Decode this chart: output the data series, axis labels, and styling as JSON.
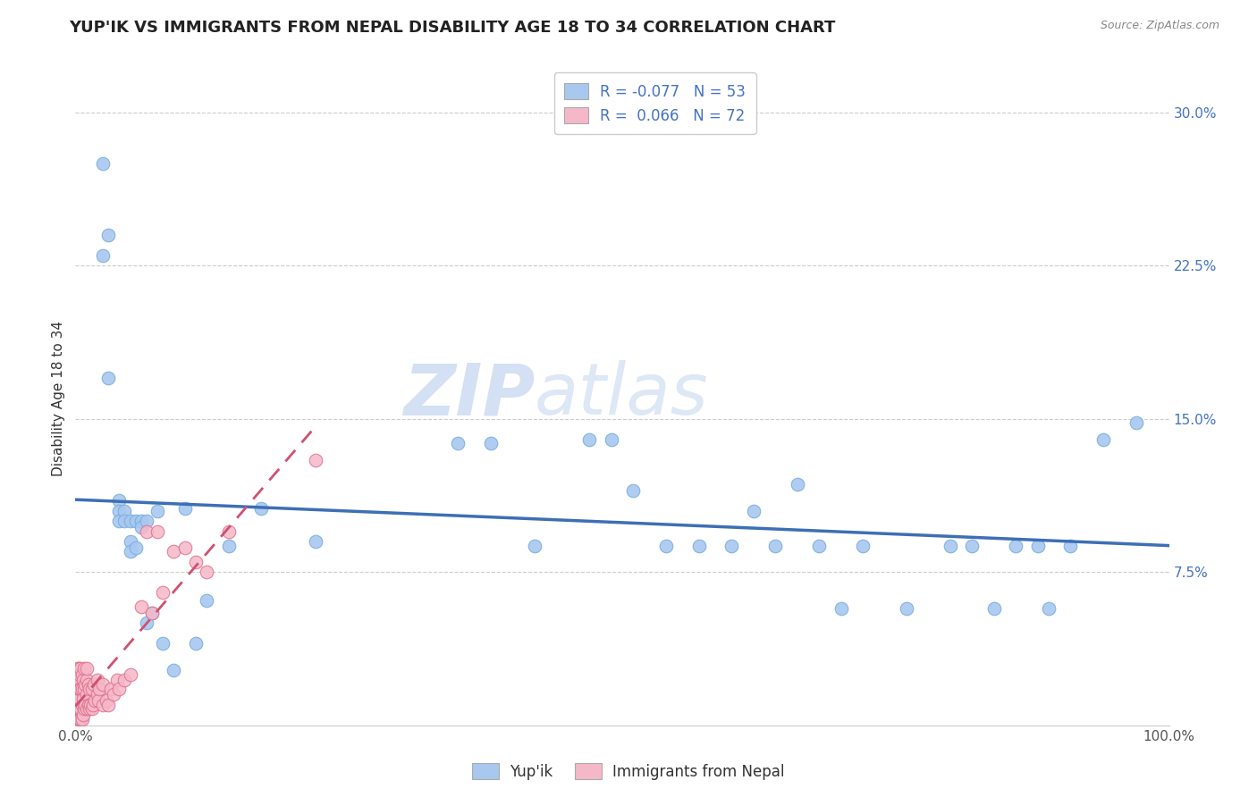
{
  "title": "YUP'IK VS IMMIGRANTS FROM NEPAL DISABILITY AGE 18 TO 34 CORRELATION CHART",
  "source": "Source: ZipAtlas.com",
  "ylabel": "Disability Age 18 to 34",
  "xlim": [
    0,
    1.0
  ],
  "ylim": [
    0,
    0.32
  ],
  "xtick_positions": [
    0,
    1.0
  ],
  "xtick_labels": [
    "0.0%",
    "100.0%"
  ],
  "ytick_values": [
    0.075,
    0.15,
    0.225,
    0.3
  ],
  "ytick_labels": [
    "7.5%",
    "15.0%",
    "22.5%",
    "30.0%"
  ],
  "grid_color": "#cccccc",
  "background_color": "#ffffff",
  "series1_label": "Yup'ik",
  "series1_color": "#a8c8f0",
  "series1_edge_color": "#7aaedd",
  "series1_line_color": "#3d6fb5",
  "series1_R": "-0.077",
  "series1_N": "53",
  "series2_label": "Immigrants from Nepal",
  "series2_color": "#f5b8c8",
  "series2_edge_color": "#e07090",
  "series2_line_color": "#d05070",
  "series2_R": "0.066",
  "series2_N": "72",
  "watermark_zip": "ZIP",
  "watermark_atlas": "atlas",
  "watermark_color_zip": "#b8c8e8",
  "watermark_color_atlas": "#c0d0e8",
  "series1_x": [
    0.025,
    0.025,
    0.03,
    0.03,
    0.04,
    0.04,
    0.04,
    0.045,
    0.045,
    0.05,
    0.05,
    0.05,
    0.055,
    0.055,
    0.06,
    0.06,
    0.065,
    0.065,
    0.07,
    0.075,
    0.08,
    0.09,
    0.1,
    0.11,
    0.12,
    0.14,
    0.17,
    0.22,
    0.35,
    0.38,
    0.42,
    0.47,
    0.49,
    0.51,
    0.54,
    0.57,
    0.6,
    0.62,
    0.64,
    0.66,
    0.68,
    0.7,
    0.72,
    0.76,
    0.8,
    0.82,
    0.84,
    0.86,
    0.88,
    0.89,
    0.91,
    0.94,
    0.97
  ],
  "series1_y": [
    0.275,
    0.23,
    0.24,
    0.17,
    0.11,
    0.105,
    0.1,
    0.105,
    0.1,
    0.1,
    0.09,
    0.085,
    0.1,
    0.087,
    0.1,
    0.097,
    0.1,
    0.05,
    0.055,
    0.105,
    0.04,
    0.027,
    0.106,
    0.04,
    0.061,
    0.088,
    0.106,
    0.09,
    0.138,
    0.138,
    0.088,
    0.14,
    0.14,
    0.115,
    0.088,
    0.088,
    0.088,
    0.105,
    0.088,
    0.118,
    0.088,
    0.057,
    0.088,
    0.057,
    0.088,
    0.088,
    0.057,
    0.088,
    0.088,
    0.057,
    0.088,
    0.14,
    0.148
  ],
  "series2_x": [
    0.002,
    0.002,
    0.002,
    0.002,
    0.002,
    0.002,
    0.003,
    0.003,
    0.003,
    0.003,
    0.003,
    0.003,
    0.004,
    0.004,
    0.004,
    0.004,
    0.004,
    0.005,
    0.005,
    0.005,
    0.005,
    0.006,
    0.006,
    0.006,
    0.006,
    0.007,
    0.007,
    0.007,
    0.008,
    0.008,
    0.008,
    0.009,
    0.009,
    0.01,
    0.01,
    0.01,
    0.01,
    0.012,
    0.012,
    0.013,
    0.013,
    0.014,
    0.015,
    0.015,
    0.016,
    0.017,
    0.018,
    0.02,
    0.02,
    0.021,
    0.022,
    0.025,
    0.025,
    0.028,
    0.03,
    0.032,
    0.035,
    0.038,
    0.04,
    0.045,
    0.05,
    0.06,
    0.065,
    0.07,
    0.075,
    0.08,
    0.09,
    0.1,
    0.11,
    0.12,
    0.14,
    0.22
  ],
  "series2_y": [
    0.004,
    0.008,
    0.013,
    0.018,
    0.022,
    0.028,
    0.003,
    0.008,
    0.013,
    0.018,
    0.022,
    0.028,
    0.003,
    0.008,
    0.013,
    0.018,
    0.025,
    0.003,
    0.008,
    0.018,
    0.028,
    0.003,
    0.01,
    0.018,
    0.025,
    0.005,
    0.013,
    0.022,
    0.008,
    0.018,
    0.028,
    0.01,
    0.02,
    0.008,
    0.015,
    0.022,
    0.028,
    0.01,
    0.02,
    0.008,
    0.018,
    0.01,
    0.008,
    0.018,
    0.01,
    0.02,
    0.012,
    0.015,
    0.022,
    0.012,
    0.018,
    0.01,
    0.02,
    0.012,
    0.01,
    0.018,
    0.015,
    0.022,
    0.018,
    0.022,
    0.025,
    0.058,
    0.095,
    0.055,
    0.095,
    0.065,
    0.085,
    0.087,
    0.08,
    0.075,
    0.095,
    0.13
  ]
}
